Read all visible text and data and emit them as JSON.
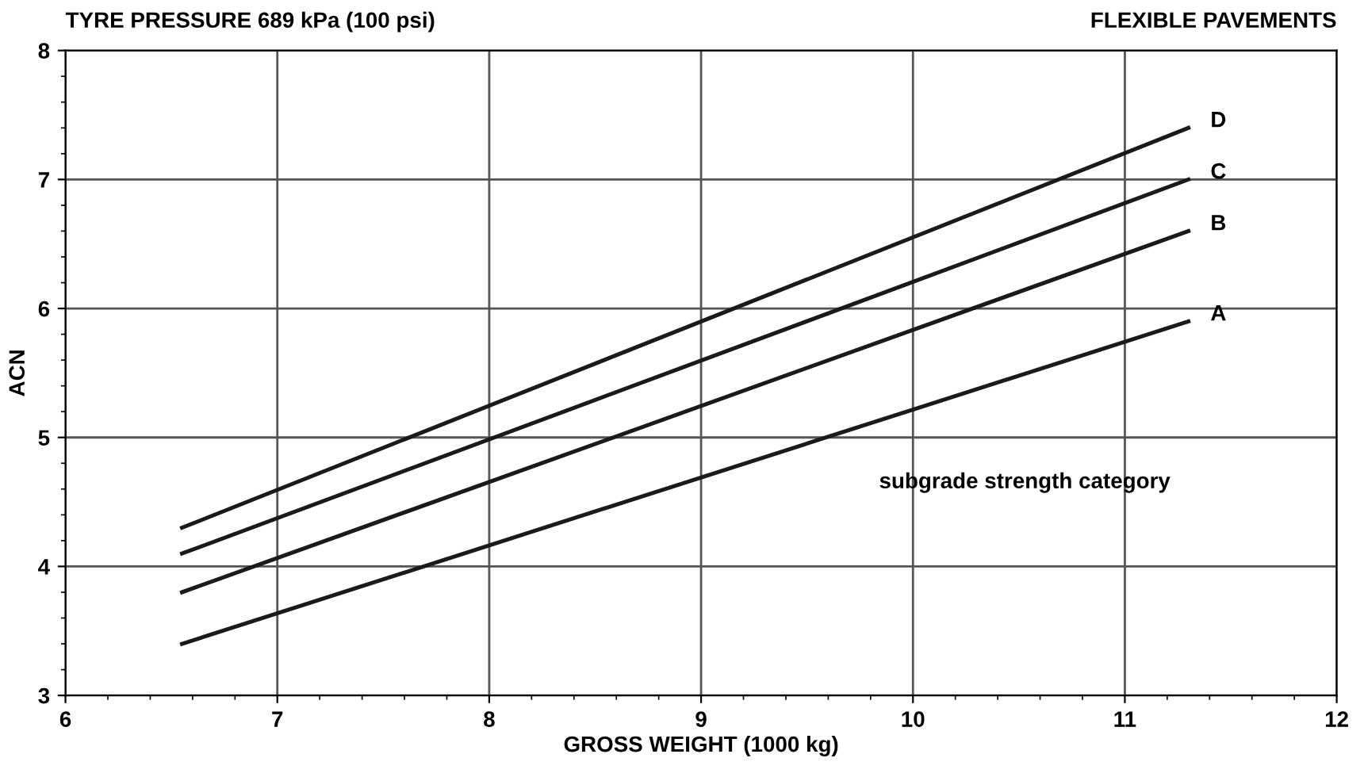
{
  "chart_data": {
    "type": "line",
    "title": "TYRE PRESSURE 689 kPa (100 psi)",
    "subtitle": "FLEXIBLE PAVEMENTS",
    "xlabel": "GROSS WEIGHT (1000 kg)",
    "ylabel": "ACN",
    "x": [
      6.55,
      11.3
    ],
    "series": [
      {
        "name": "A",
        "color": "#1a1a1a",
        "values": [
          3.4,
          5.9
        ]
      },
      {
        "name": "B",
        "color": "#1a1a1a",
        "values": [
          3.8,
          6.6
        ]
      },
      {
        "name": "C",
        "color": "#1a1a1a",
        "values": [
          4.1,
          7.0
        ]
      },
      {
        "name": "D",
        "color": "#1a1a1a",
        "values": [
          4.3,
          7.4
        ]
      }
    ],
    "annotations": [
      "subgrade strength category"
    ],
    "xlim": [
      6,
      12
    ],
    "ylim": [
      3,
      8
    ],
    "xticks": [
      6,
      7,
      8,
      9,
      10,
      11,
      12
    ],
    "yticks": [
      3,
      4,
      5,
      6,
      7,
      8
    ],
    "grid": true,
    "marker": "none",
    "line_style": "solid"
  }
}
